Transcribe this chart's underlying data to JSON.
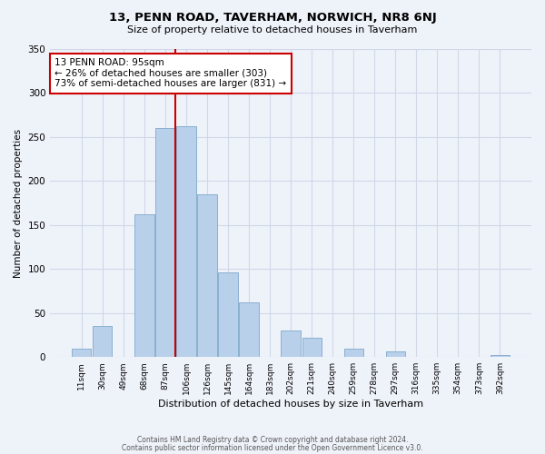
{
  "title": "13, PENN ROAD, TAVERHAM, NORWICH, NR8 6NJ",
  "subtitle": "Size of property relative to detached houses in Taverham",
  "xlabel": "Distribution of detached houses by size in Taverham",
  "ylabel": "Number of detached properties",
  "bar_labels": [
    "11sqm",
    "30sqm",
    "49sqm",
    "68sqm",
    "87sqm",
    "106sqm",
    "126sqm",
    "145sqm",
    "164sqm",
    "183sqm",
    "202sqm",
    "221sqm",
    "240sqm",
    "259sqm",
    "278sqm",
    "297sqm",
    "316sqm",
    "335sqm",
    "354sqm",
    "373sqm",
    "392sqm"
  ],
  "bar_values": [
    9,
    35,
    0,
    162,
    260,
    262,
    185,
    96,
    62,
    0,
    30,
    22,
    0,
    10,
    0,
    6,
    0,
    0,
    0,
    0,
    2
  ],
  "bar_color": "#b8d0ea",
  "bar_edge_color": "#8ab0d0",
  "vline_x": 4.5,
  "vline_color": "#cc0000",
  "annotation_text": "13 PENN ROAD: 95sqm\n← 26% of detached houses are smaller (303)\n73% of semi-detached houses are larger (831) →",
  "annotation_box_color": "white",
  "annotation_box_edge": "#cc0000",
  "ylim": [
    0,
    350
  ],
  "yticks": [
    0,
    50,
    100,
    150,
    200,
    250,
    300,
    350
  ],
  "footer1": "Contains HM Land Registry data © Crown copyright and database right 2024.",
  "footer2": "Contains public sector information licensed under the Open Government Licence v3.0.",
  "background_color": "#eef2f9",
  "plot_background": "#eef2f9",
  "grid_color": "#d0d8e8"
}
